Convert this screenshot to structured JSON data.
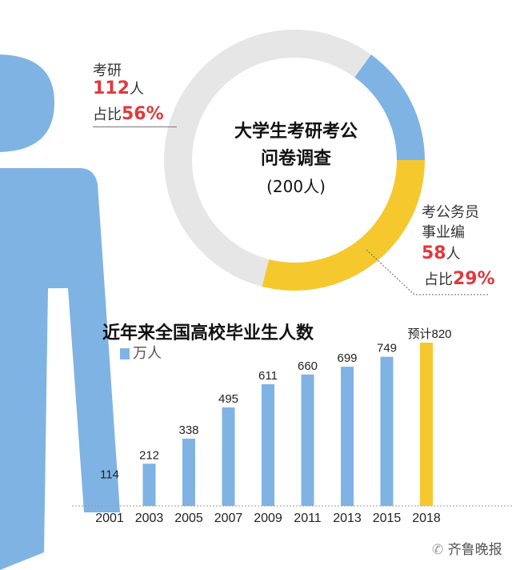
{
  "colors": {
    "blue": "#7fb3e3",
    "yellow": "#f5c82e",
    "gray": "#e6e6e6",
    "red": "#e0393e"
  },
  "donut": {
    "title_line1": "大学生考研考公",
    "title_line2": "问卷调查",
    "total": "(200人)",
    "segments": [
      {
        "label": "考研",
        "count": "112",
        "unit": "人",
        "share_prefix": "占比",
        "share": "56%",
        "value": 56,
        "color": "#e6e6e6"
      },
      {
        "label_line1": "考公务员",
        "label_line2": "事业编",
        "count": "58",
        "unit": "人",
        "share_prefix": "占比",
        "share": "29%",
        "value": 29,
        "color": "#f5c82e"
      },
      {
        "value": 15,
        "color": "#7fb3e3"
      }
    ]
  },
  "chart_data": {
    "type": "bar",
    "title": "近年来全国高校毕业生人数",
    "legend": "万人",
    "categories": [
      "2001",
      "2003",
      "2005",
      "2007",
      "2009",
      "2011",
      "2013",
      "2015",
      "2018"
    ],
    "values": [
      114,
      212,
      338,
      495,
      611,
      660,
      699,
      749,
      820
    ],
    "labels": [
      "114",
      "212",
      "338",
      "495",
      "611",
      "660",
      "699",
      "749",
      "预计820"
    ],
    "highlight_index": 8
  },
  "footer": {
    "source": "齐鲁晚报"
  }
}
